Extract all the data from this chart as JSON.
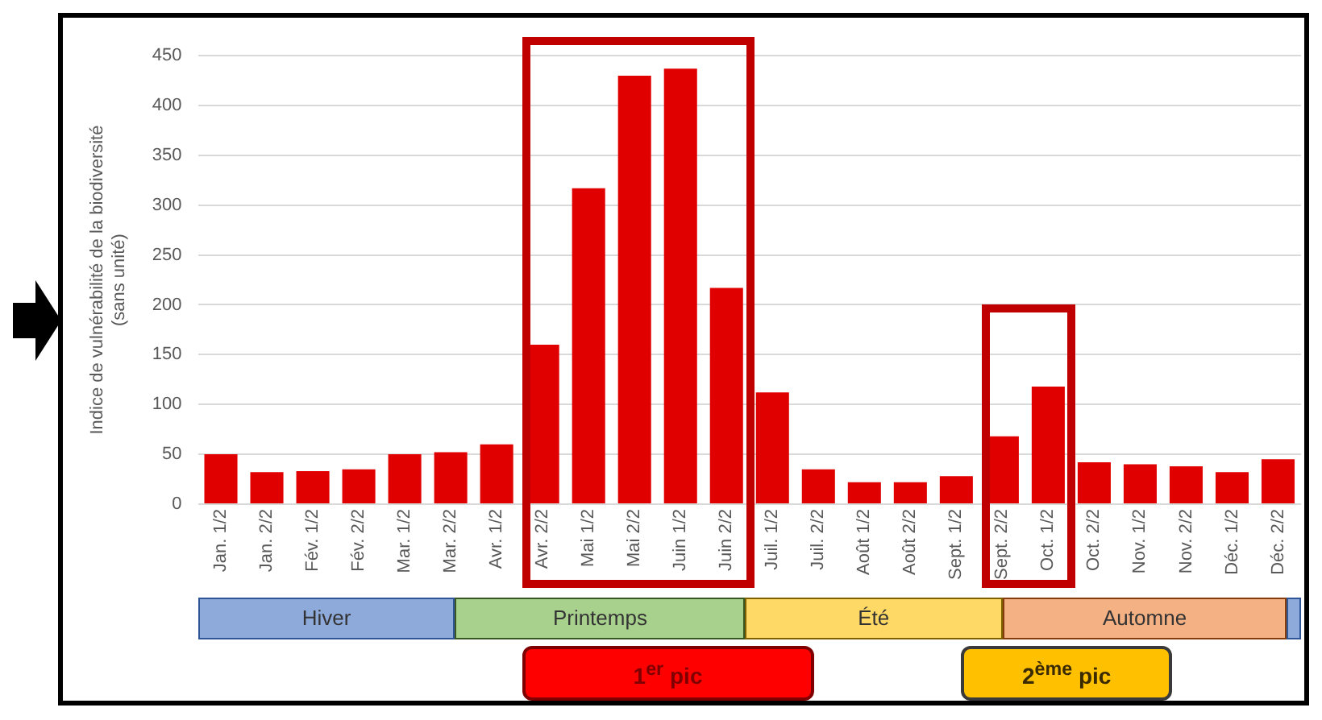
{
  "chart_data": {
    "type": "bar",
    "ylabel": "Indice de vulnérabilité de la biodiversité\n(sans unité)",
    "categories": [
      "Jan. 1/2",
      "Jan. 2/2",
      "Fév. 1/2",
      "Fév. 2/2",
      "Mar. 1/2",
      "Mar. 2/2",
      "Avr. 1/2",
      "Avr. 2/2",
      "Mai 1/2",
      "Mai 2/2",
      "Juin 1/2",
      "Juin 2/2",
      "Juil. 1/2",
      "Juil. 2/2",
      "Août 1/2",
      "Août 2/2",
      "Sept. 1/2",
      "Sept. 2/2",
      "Oct. 1/2",
      "Oct. 2/2",
      "Nov. 1/2",
      "Nov. 2/2",
      "Déc. 1/2",
      "Déc. 2/2"
    ],
    "values": [
      50,
      32,
      33,
      35,
      50,
      52,
      60,
      160,
      317,
      430,
      437,
      217,
      112,
      35,
      22,
      22,
      28,
      68,
      118,
      42,
      40,
      38,
      32,
      45
    ],
    "color": "#e00000",
    "ylim": [
      0,
      450
    ],
    "yticks": [
      0,
      50,
      100,
      150,
      200,
      250,
      300,
      350,
      400,
      450
    ],
    "grid": "y",
    "legend": false,
    "annotations": [
      "Hiver",
      "Printemps",
      "Été",
      "Automne",
      "1$^{er}$ pic",
      "2$^{ème}$ pic"
    ]
  }
}
